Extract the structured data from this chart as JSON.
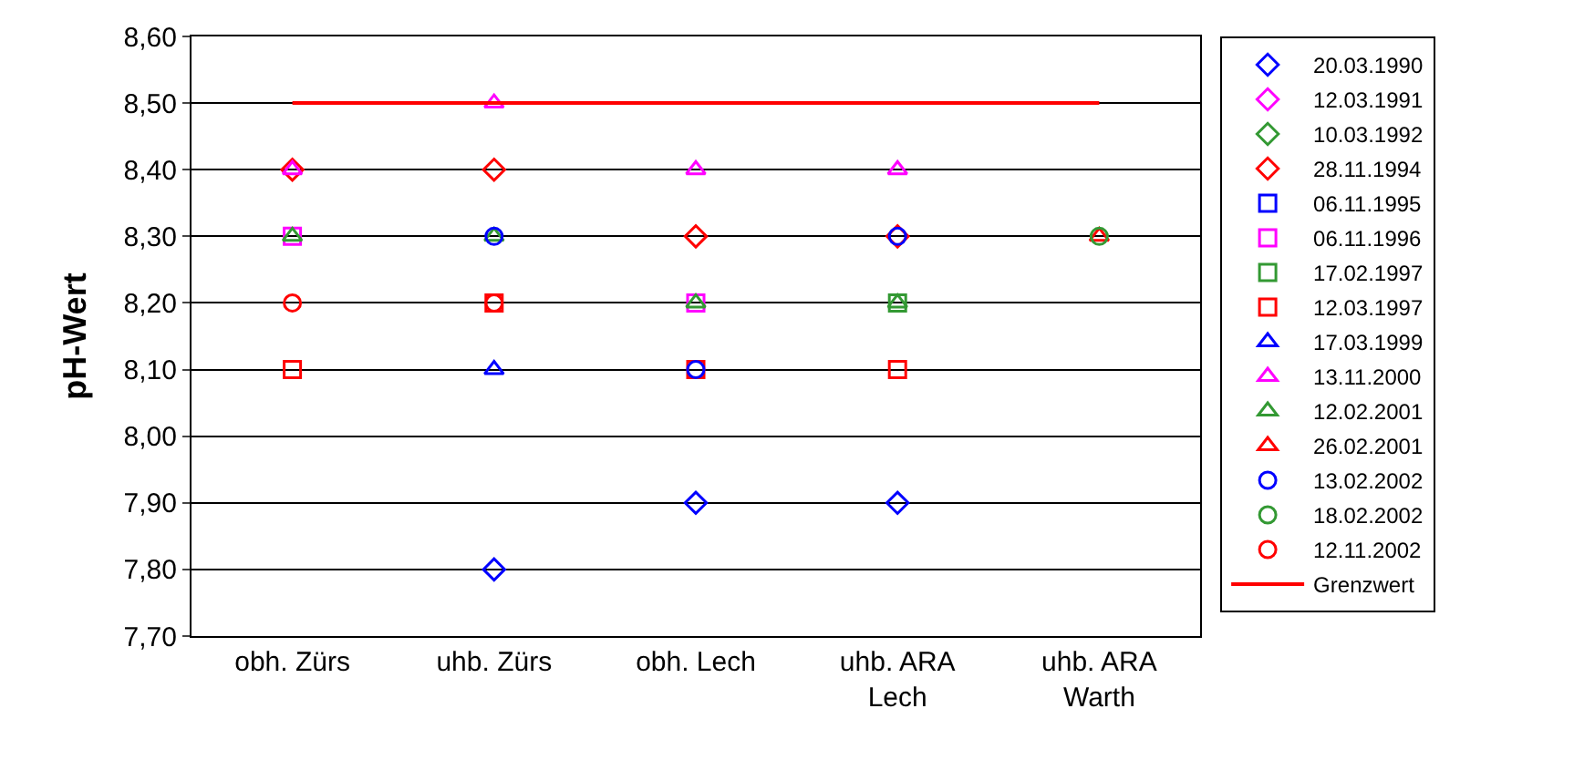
{
  "chart_data": {
    "type": "scatter",
    "ylabel": "pH-Wert",
    "categories": [
      "obh. Zürs",
      "uhb. Zürs",
      "obh. Lech",
      "uhb. ARA Lech",
      "uhb. ARA Warth"
    ],
    "ylim": [
      7.7,
      8.6
    ],
    "yticks": [
      {
        "value": 7.7,
        "label": "7,70"
      },
      {
        "value": 7.8,
        "label": "7,80"
      },
      {
        "value": 7.9,
        "label": "7,90"
      },
      {
        "value": 8.0,
        "label": "8,00"
      },
      {
        "value": 8.1,
        "label": "8,10"
      },
      {
        "value": 8.2,
        "label": "8,20"
      },
      {
        "value": 8.3,
        "label": "8,30"
      },
      {
        "value": 8.4,
        "label": "8,40"
      },
      {
        "value": 8.5,
        "label": "8,50"
      },
      {
        "value": 8.6,
        "label": "8,60"
      }
    ],
    "grid": "y",
    "legend": "right",
    "series": [
      {
        "name": "20.03.1990",
        "color": "#0000ff",
        "marker": "diamond",
        "values": [
          null,
          7.8,
          7.9,
          7.9,
          null
        ]
      },
      {
        "name": "12.03.1991",
        "color": "#ff00ff",
        "marker": "diamond",
        "values": [
          null,
          null,
          null,
          null,
          null
        ]
      },
      {
        "name": "10.03.1992",
        "color": "#339933",
        "marker": "diamond",
        "values": [
          null,
          null,
          null,
          null,
          null
        ]
      },
      {
        "name": "28.11.1994",
        "color": "#ff0000",
        "marker": "diamond",
        "values": [
          8.4,
          8.4,
          8.3,
          8.3,
          null
        ]
      },
      {
        "name": "06.11.1995",
        "color": "#0000ff",
        "marker": "square",
        "values": [
          null,
          null,
          null,
          null,
          null
        ]
      },
      {
        "name": "06.11.1996",
        "color": "#ff00ff",
        "marker": "square",
        "values": [
          8.3,
          null,
          8.2,
          null,
          null
        ]
      },
      {
        "name": "17.02.1997",
        "color": "#339933",
        "marker": "square",
        "values": [
          null,
          null,
          null,
          8.2,
          null
        ]
      },
      {
        "name": "12.03.1997",
        "color": "#ff0000",
        "marker": "square",
        "values": [
          8.1,
          8.2,
          8.1,
          8.1,
          null
        ]
      },
      {
        "name": "17.03.1999",
        "color": "#0000ff",
        "marker": "triangle",
        "values": [
          null,
          8.1,
          null,
          null,
          null
        ]
      },
      {
        "name": "13.11.2000",
        "color": "#ff00ff",
        "marker": "triangle",
        "values": [
          8.4,
          8.5,
          8.4,
          8.4,
          null
        ]
      },
      {
        "name": "12.02.2001",
        "color": "#339933",
        "marker": "triangle",
        "values": [
          8.3,
          8.3,
          8.2,
          8.2,
          null
        ]
      },
      {
        "name": "26.02.2001",
        "color": "#ff0000",
        "marker": "triangle",
        "values": [
          null,
          null,
          null,
          null,
          8.3
        ]
      },
      {
        "name": "13.02.2002",
        "color": "#0000ff",
        "marker": "circle",
        "values": [
          null,
          8.3,
          8.1,
          8.3,
          null
        ]
      },
      {
        "name": "18.02.2002",
        "color": "#339933",
        "marker": "circle",
        "values": [
          null,
          null,
          null,
          null,
          8.3
        ]
      },
      {
        "name": "12.11.2002",
        "color": "#ff0000",
        "marker": "circle",
        "values": [
          8.2,
          8.2,
          null,
          null,
          null
        ]
      },
      {
        "name": "Grenzwert",
        "color": "#ff0000",
        "type": "line",
        "marker": "none",
        "line_style": "solid",
        "values": [
          8.5,
          8.5,
          8.5,
          8.5,
          8.5
        ]
      }
    ]
  }
}
